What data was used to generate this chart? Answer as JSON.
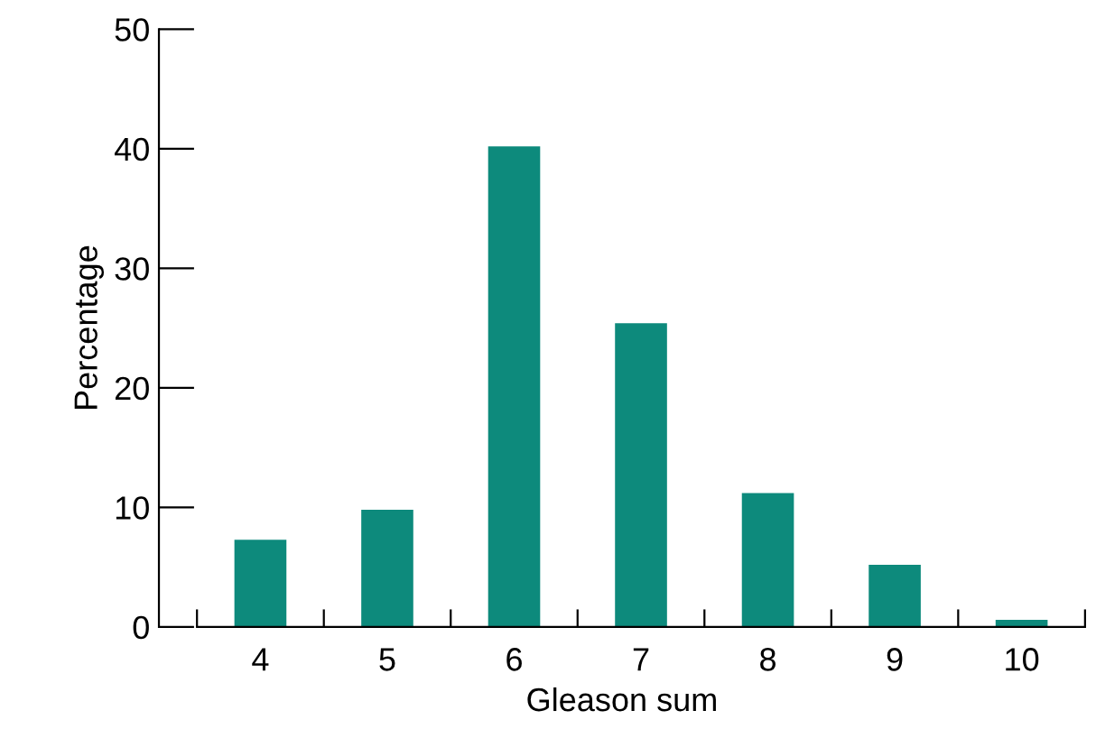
{
  "chart_data": {
    "type": "bar",
    "xlabel": "Gleason sum",
    "ylabel": "Percentage",
    "categories": [
      "4",
      "5",
      "6",
      "7",
      "8",
      "9",
      "10"
    ],
    "values": [
      7.3,
      9.8,
      40.2,
      25.4,
      11.2,
      5.2,
      0.6
    ],
    "color": "#0d8a7c",
    "ylim": [
      0,
      50
    ],
    "yticks": [
      0,
      10,
      20,
      30,
      40,
      50
    ],
    "grid": false
  }
}
